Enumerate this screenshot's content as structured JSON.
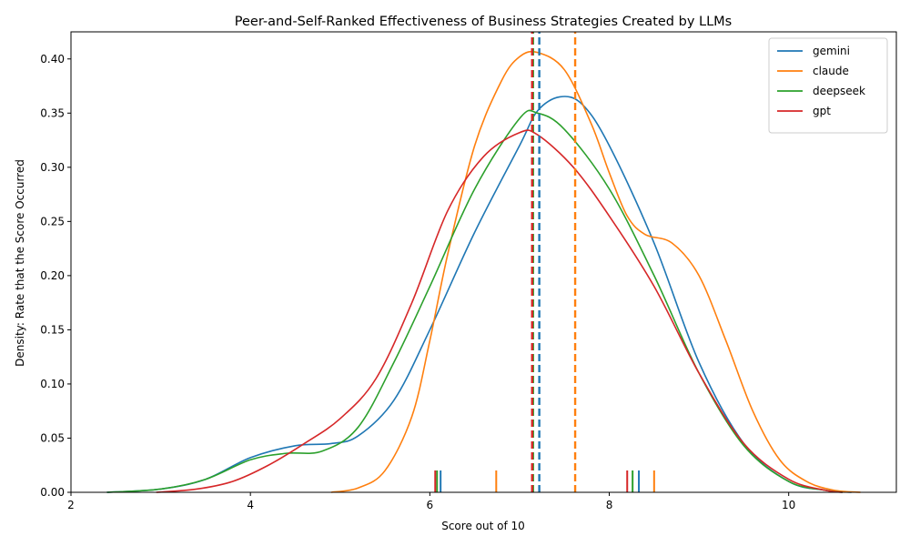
{
  "chart_data": {
    "type": "line",
    "title": "Peer-and-Self-Ranked Effectiveness of Business Strategies Created by LLMs",
    "xlabel": "Score out of 10",
    "ylabel": "Density: Rate that the Score Occurred",
    "xlim": [
      2.0,
      11.2
    ],
    "ylim": [
      0.0,
      0.425
    ],
    "x_ticks": [
      2,
      4,
      6,
      8,
      10
    ],
    "y_ticks": [
      0.0,
      0.05,
      0.1,
      0.15,
      0.2,
      0.25,
      0.3,
      0.35,
      0.4
    ],
    "grid": false,
    "legend_position": "top-right",
    "series": [
      {
        "name": "gemini",
        "color": "#1f77b4",
        "mean": 7.22,
        "rug": [
          6.12,
          8.33
        ],
        "points": [
          [
            2.4,
            0.0
          ],
          [
            3.0,
            0.003
          ],
          [
            3.5,
            0.012
          ],
          [
            4.0,
            0.032
          ],
          [
            4.5,
            0.043
          ],
          [
            4.9,
            0.045
          ],
          [
            5.2,
            0.052
          ],
          [
            5.6,
            0.085
          ],
          [
            6.0,
            0.15
          ],
          [
            6.5,
            0.24
          ],
          [
            7.0,
            0.32
          ],
          [
            7.2,
            0.352
          ],
          [
            7.45,
            0.365
          ],
          [
            7.7,
            0.358
          ],
          [
            8.0,
            0.32
          ],
          [
            8.5,
            0.23
          ],
          [
            9.0,
            0.12
          ],
          [
            9.5,
            0.045
          ],
          [
            10.0,
            0.01
          ],
          [
            10.4,
            0.002
          ],
          [
            10.7,
            0.0
          ]
        ]
      },
      {
        "name": "claude",
        "color": "#ff7f0e",
        "mean": 7.62,
        "rug": [
          6.74,
          8.5
        ],
        "points": [
          [
            4.9,
            0.0
          ],
          [
            5.2,
            0.004
          ],
          [
            5.5,
            0.02
          ],
          [
            5.8,
            0.07
          ],
          [
            6.0,
            0.14
          ],
          [
            6.2,
            0.22
          ],
          [
            6.5,
            0.32
          ],
          [
            6.8,
            0.38
          ],
          [
            7.0,
            0.402
          ],
          [
            7.2,
            0.406
          ],
          [
            7.5,
            0.39
          ],
          [
            7.8,
            0.34
          ],
          [
            8.0,
            0.295
          ],
          [
            8.2,
            0.255
          ],
          [
            8.4,
            0.238
          ],
          [
            8.7,
            0.23
          ],
          [
            9.0,
            0.2
          ],
          [
            9.3,
            0.14
          ],
          [
            9.6,
            0.075
          ],
          [
            9.9,
            0.03
          ],
          [
            10.2,
            0.01
          ],
          [
            10.5,
            0.002
          ],
          [
            10.8,
            0.0
          ]
        ]
      },
      {
        "name": "deepseek",
        "color": "#2ca02c",
        "mean": 7.15,
        "rug": [
          6.08,
          8.26
        ],
        "points": [
          [
            2.4,
            0.0
          ],
          [
            3.0,
            0.003
          ],
          [
            3.5,
            0.012
          ],
          [
            4.0,
            0.03
          ],
          [
            4.4,
            0.036
          ],
          [
            4.8,
            0.038
          ],
          [
            5.2,
            0.06
          ],
          [
            5.6,
            0.12
          ],
          [
            6.0,
            0.19
          ],
          [
            6.5,
            0.28
          ],
          [
            7.0,
            0.345
          ],
          [
            7.2,
            0.35
          ],
          [
            7.5,
            0.335
          ],
          [
            8.0,
            0.28
          ],
          [
            8.5,
            0.2
          ],
          [
            9.0,
            0.11
          ],
          [
            9.5,
            0.043
          ],
          [
            10.0,
            0.01
          ],
          [
            10.4,
            0.002
          ],
          [
            10.6,
            0.0
          ]
        ]
      },
      {
        "name": "gpt",
        "color": "#d62728",
        "mean": 7.14,
        "rug": [
          6.06,
          8.2
        ],
        "points": [
          [
            2.95,
            0.0
          ],
          [
            3.4,
            0.003
          ],
          [
            3.8,
            0.01
          ],
          [
            4.2,
            0.025
          ],
          [
            4.6,
            0.045
          ],
          [
            5.0,
            0.068
          ],
          [
            5.4,
            0.105
          ],
          [
            5.8,
            0.175
          ],
          [
            6.2,
            0.26
          ],
          [
            6.6,
            0.31
          ],
          [
            7.0,
            0.332
          ],
          [
            7.2,
            0.33
          ],
          [
            7.6,
            0.3
          ],
          [
            8.0,
            0.255
          ],
          [
            8.5,
            0.19
          ],
          [
            9.0,
            0.11
          ],
          [
            9.5,
            0.045
          ],
          [
            10.0,
            0.012
          ],
          [
            10.4,
            0.002
          ],
          [
            10.6,
            0.0
          ]
        ]
      }
    ]
  }
}
